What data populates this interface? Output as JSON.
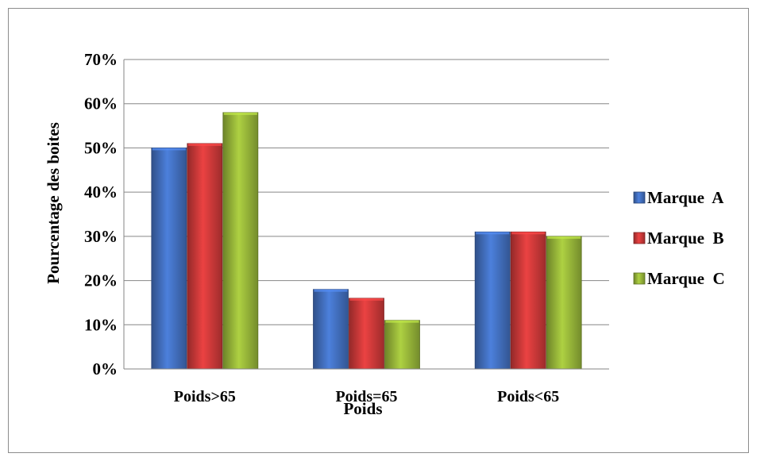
{
  "chart_data": {
    "type": "bar",
    "title": "",
    "xlabel": "Poids",
    "ylabel": "Pourcentage des boites",
    "categories": [
      "Poids>65",
      "Poids=65",
      "Poids<65"
    ],
    "ylim": [
      0,
      0.7
    ],
    "yticks": [
      0,
      0.1,
      0.2,
      0.3,
      0.4,
      0.5,
      0.6,
      0.7
    ],
    "ytick_labels": [
      "0%",
      "10%",
      "20%",
      "30%",
      "40%",
      "50%",
      "60%",
      "70%"
    ],
    "grid": true,
    "legend_position": "right",
    "series": [
      {
        "name": "Marque  A",
        "values": [
          0.5,
          0.18,
          0.31
        ],
        "color": "#4472c4"
      },
      {
        "name": "Marque  B",
        "values": [
          0.51,
          0.16,
          0.31
        ],
        "color": "#d23b3b"
      },
      {
        "name": "Marque  C",
        "values": [
          0.58,
          0.11,
          0.3
        ],
        "color": "#9bbb3b"
      }
    ]
  }
}
